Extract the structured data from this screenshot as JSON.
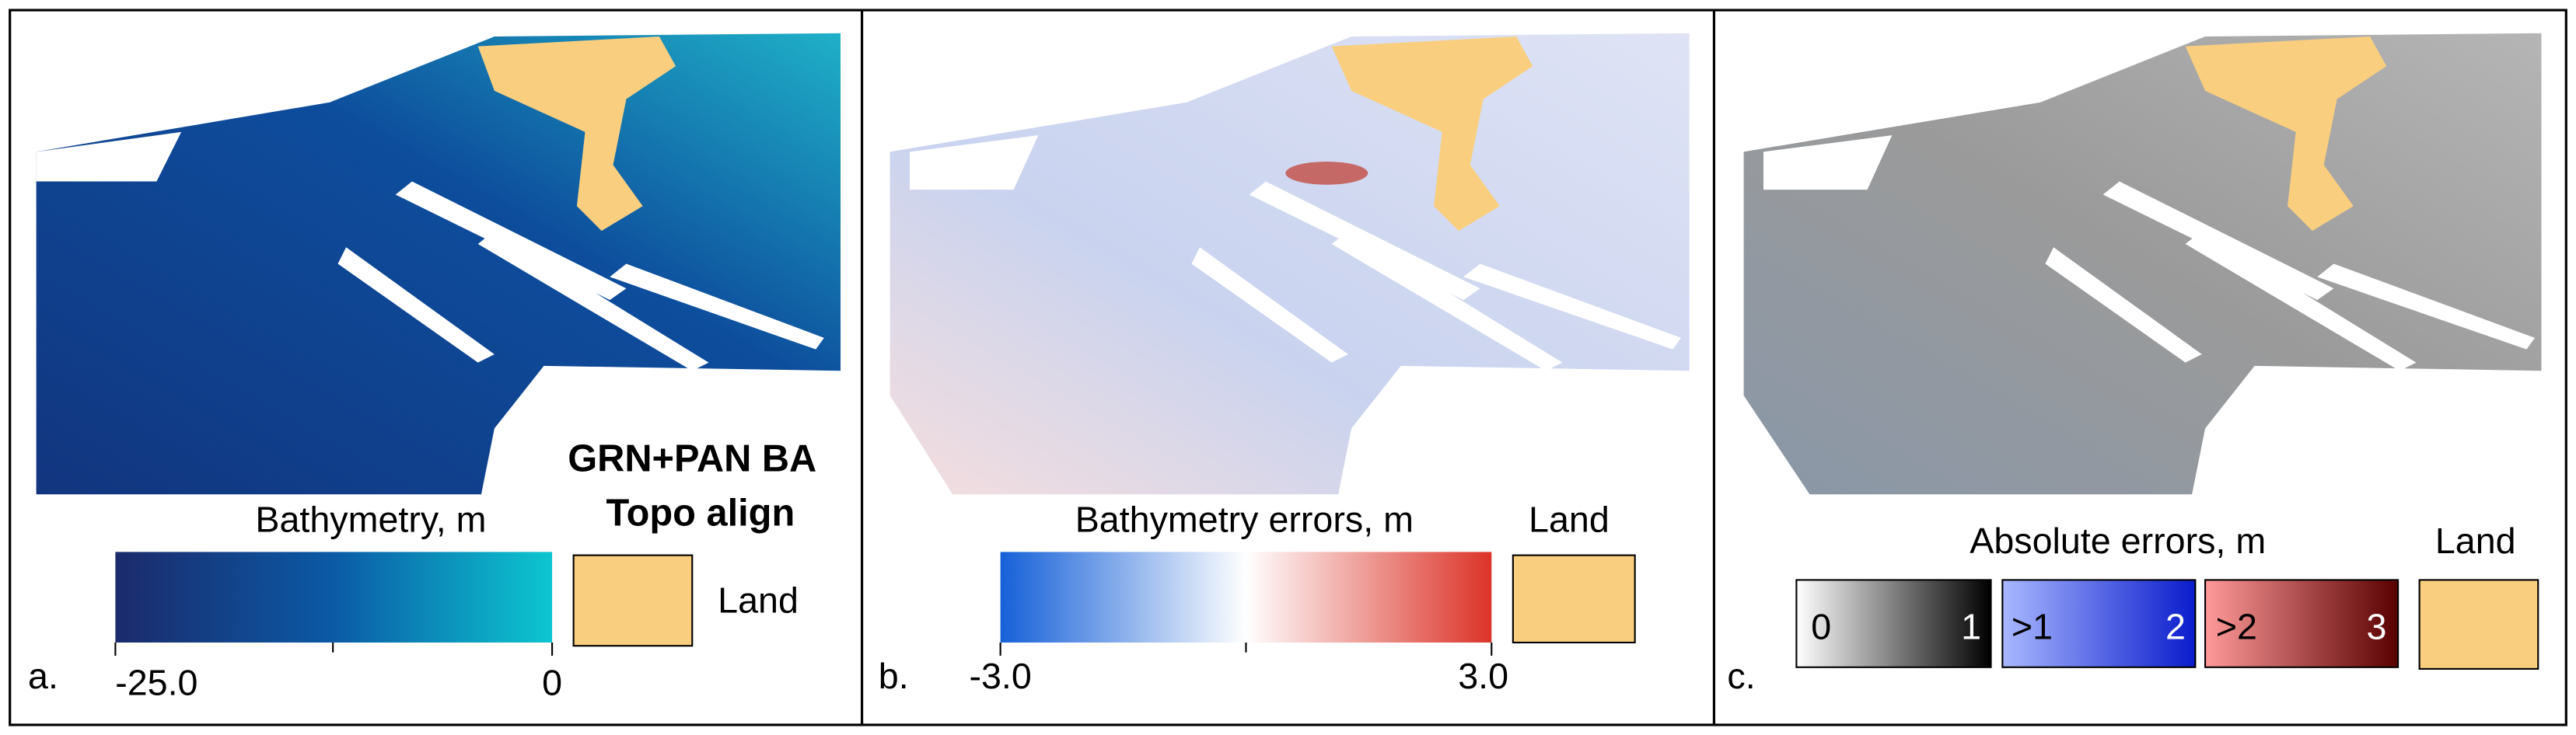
{
  "panels": [
    {
      "letter": "a.",
      "title_lines": [
        "GRN+PAN BA",
        "Topo align"
      ],
      "legend_title": "Bathymetry, m",
      "scale_min": "-25.0",
      "scale_max": "0",
      "land": "Land"
    },
    {
      "letter": "b.",
      "legend_title": "Bathymetry errors, m",
      "scale_min": "-3.0",
      "scale_max": "3.0",
      "land": "Land"
    },
    {
      "letter": "c.",
      "legend_title": "Absolute errors, m",
      "land": "Land",
      "bins": [
        {
          "low": "0",
          "high": "1"
        },
        {
          "low": ">1",
          "high": "2"
        },
        {
          "low": ">2",
          "high": "3"
        }
      ]
    }
  ]
}
